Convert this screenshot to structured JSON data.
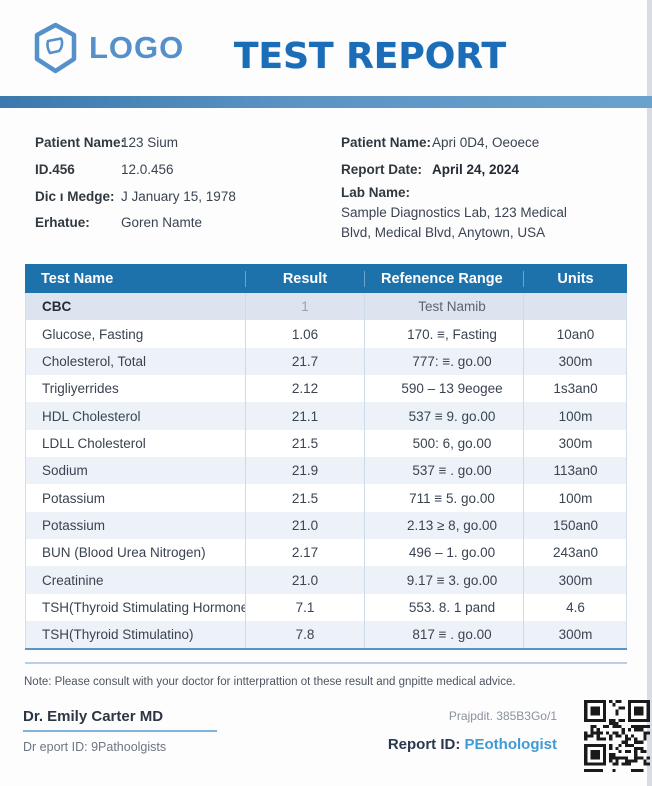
{
  "page": {
    "logo_text": "LOGO",
    "title": "TEST REPORT"
  },
  "patient_info": {
    "left": [
      {
        "label": "Patient Name:",
        "value": "123 Sium"
      },
      {
        "label": "ID.456",
        "value": "12.0.456"
      },
      {
        "label": "Dic ı Medge:",
        "value": "J January 15, 1978"
      },
      {
        "label": "Erhatue:",
        "value": "Goren Namte"
      }
    ],
    "right": [
      {
        "label": "Patient Name:",
        "value": "Apri 0D4, Oeoece"
      },
      {
        "label": "Report Date:",
        "value": "April 24, 2024"
      }
    ],
    "lab_label": "Lab Name:",
    "lab_address": "Sample Diagnostics Lab, 123 Medical Blvd, Medical Blvd, Anytown, USA"
  },
  "table": {
    "columns": [
      "Test Name",
      "Result",
      "Refenence Range",
      "Units"
    ],
    "rows": [
      {
        "section": true,
        "cells": [
          "CBC",
          "1",
          "Test Namib",
          ""
        ]
      },
      {
        "section": false,
        "cells": [
          "Glucose, Fasting",
          "1.06",
          "170. ≡, Fasting",
          "10an0"
        ]
      },
      {
        "section": false,
        "cells": [
          "Cholesterol, Total",
          "21.7",
          "777: ≡. go.00",
          "300m"
        ]
      },
      {
        "section": false,
        "cells": [
          "Trigliyerrides",
          "2.12",
          "590 – 13 9eogee",
          "1s3an0"
        ]
      },
      {
        "section": false,
        "cells": [
          "HDL Cholesterol",
          "21.1",
          "537 ≡ 9. go.00",
          "100m"
        ]
      },
      {
        "section": false,
        "cells": [
          "LDLL Cholesterol",
          "21.5",
          "500: 6, go.00",
          "300m"
        ]
      },
      {
        "section": false,
        "cells": [
          "Sodium",
          "21.9",
          "537 ≡ . go.00",
          "113an0"
        ]
      },
      {
        "section": false,
        "cells": [
          "Potassium",
          "21.5",
          "711 ≡ 5. go.00",
          "100m"
        ]
      },
      {
        "section": false,
        "cells": [
          "Potassium",
          "21.0",
          "2.13 ≥ 8, go.00",
          "150an0"
        ]
      },
      {
        "section": false,
        "cells": [
          "BUN (Blood Urea Nitrogen)",
          "2.17",
          "496 – 1. go.00",
          "243an0"
        ]
      },
      {
        "section": false,
        "cells": [
          "Creatinine",
          "21.0",
          "9.17 ≡ 3. go.00",
          "300m"
        ]
      },
      {
        "section": false,
        "cells": [
          "TSH(Thyroid Stimulating Hormone",
          "7.1",
          "553. 8. 1 pand",
          "4.6"
        ]
      },
      {
        "section": false,
        "cells": [
          "TSH(Thyroid Stimulatino)",
          "7.8",
          "817 ≡ . go.00",
          "300m"
        ]
      }
    ]
  },
  "note": "Note: Please consult with your doctor for intterprattion ot these result and gnpitte medical advice.",
  "footer": {
    "doctor_name": "Dr. Emily Carter MD",
    "doctor_sub": "Dr eport ID: 9Pathoolgists",
    "meta": "Prajpdit. 385B3Go/1",
    "report_id_label": "Report ID:",
    "report_id_value": "PEothologist"
  },
  "colors": {
    "table_header_blue": "#1e72ab",
    "title_blue": "#1a6db6",
    "logo_blue": "#5590cb",
    "divider_bar_blue": "#4d86b8",
    "report_id_link_blue": "#3f9ad6"
  }
}
